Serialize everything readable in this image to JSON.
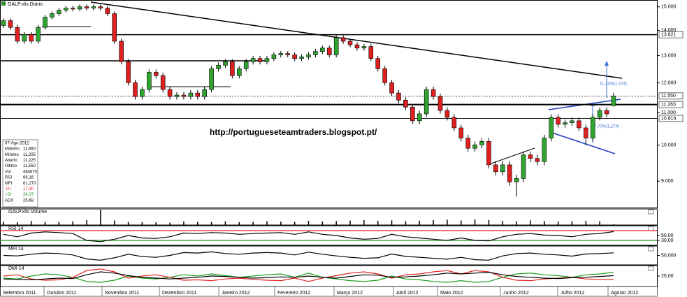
{
  "chart_data": {
    "type": "candlestick",
    "title": "GALP.xlis Diário",
    "watermark": "http://portugueseteamtraders.blogspot.pt/",
    "log": true,
    "ylim": [
      8.33,
      15.3
    ],
    "yticks": [
      {
        "value": 15,
        "label": "15.000"
      },
      {
        "value": 14,
        "label": "14.000"
      },
      {
        "value": 13,
        "label": "13.000"
      },
      {
        "value": 12,
        "label": "12.000"
      },
      {
        "value": 11,
        "label": "11.000"
      },
      {
        "value": 10,
        "label": "10.000"
      },
      {
        "value": 9,
        "label": "9.000"
      }
    ],
    "levels": [
      {
        "value": 13.821,
        "label": "13.821",
        "style": "solid"
      },
      {
        "value": 11.55,
        "label": "11.550",
        "style": "dashed"
      },
      {
        "value": 11.263,
        "label": "11.263",
        "style": "thick"
      },
      {
        "value": 10.816,
        "label": "10.816",
        "style": "thin"
      }
    ],
    "up_color": "#2fa52f",
    "down_color": "#e02020",
    "candles": [
      [
        14.2,
        14.5,
        14.1,
        14.4
      ],
      [
        14.4,
        14.5,
        14.02,
        14.12
      ],
      [
        14.12,
        14.22,
        13.46,
        13.56
      ],
      [
        13.56,
        13.93,
        13.46,
        13.83
      ],
      [
        13.83,
        13.93,
        13.46,
        13.56
      ],
      [
        13.56,
        14.22,
        13.46,
        14.12
      ],
      [
        14.12,
        14.65,
        14.02,
        14.55
      ],
      [
        14.55,
        14.8,
        14.45,
        14.7
      ],
      [
        14.7,
        14.95,
        14.6,
        14.85
      ],
      [
        14.85,
        15.04,
        14.75,
        14.94
      ],
      [
        14.94,
        15.04,
        14.8,
        14.9
      ],
      [
        14.9,
        15.1,
        14.8,
        15.0
      ],
      [
        15.0,
        15.1,
        14.84,
        14.94
      ],
      [
        14.94,
        15.1,
        14.84,
        15.0
      ],
      [
        15.0,
        15.1,
        14.84,
        14.94
      ],
      [
        14.94,
        15.04,
        14.6,
        14.7
      ],
      [
        14.7,
        14.8,
        13.46,
        13.56
      ],
      [
        13.56,
        13.66,
        12.67,
        12.77
      ],
      [
        12.77,
        12.87,
        11.91,
        12.01
      ],
      [
        12.01,
        12.11,
        11.43,
        11.53
      ],
      [
        11.53,
        11.87,
        11.43,
        11.77
      ],
      [
        11.77,
        12.48,
        11.67,
        12.38
      ],
      [
        12.38,
        12.48,
        12.16,
        12.26
      ],
      [
        12.26,
        12.36,
        11.67,
        11.77
      ],
      [
        11.77,
        11.87,
        11.43,
        11.53
      ],
      [
        11.53,
        11.68,
        11.43,
        11.58
      ],
      [
        11.58,
        11.68,
        11.43,
        11.53
      ],
      [
        11.53,
        11.75,
        11.43,
        11.65
      ],
      [
        11.65,
        11.75,
        11.43,
        11.53
      ],
      [
        11.53,
        11.87,
        11.43,
        11.77
      ],
      [
        11.77,
        12.61,
        11.67,
        12.51
      ],
      [
        12.51,
        12.74,
        12.41,
        12.64
      ],
      [
        12.64,
        12.87,
        12.54,
        12.77
      ],
      [
        12.77,
        12.87,
        12.16,
        12.26
      ],
      [
        12.26,
        12.61,
        12.16,
        12.51
      ],
      [
        12.51,
        12.87,
        12.41,
        12.77
      ],
      [
        12.77,
        12.99,
        12.67,
        12.89
      ],
      [
        12.89,
        12.99,
        12.67,
        12.77
      ],
      [
        12.77,
        12.99,
        12.67,
        12.89
      ],
      [
        12.89,
        13.13,
        12.79,
        13.03
      ],
      [
        13.03,
        13.18,
        12.93,
        13.08
      ],
      [
        13.08,
        13.18,
        12.93,
        13.03
      ],
      [
        13.03,
        13.13,
        12.79,
        12.89
      ],
      [
        12.89,
        13.05,
        12.79,
        12.95
      ],
      [
        12.95,
        13.13,
        12.85,
        13.03
      ],
      [
        13.03,
        13.26,
        12.93,
        13.16
      ],
      [
        13.16,
        13.39,
        13.06,
        13.29
      ],
      [
        13.29,
        13.39,
        12.93,
        13.03
      ],
      [
        13.03,
        13.8,
        12.93,
        13.7
      ],
      [
        13.7,
        13.8,
        13.46,
        13.56
      ],
      [
        13.56,
        13.66,
        13.32,
        13.42
      ],
      [
        13.42,
        13.52,
        13.19,
        13.29
      ],
      [
        13.29,
        13.45,
        13.19,
        13.35
      ],
      [
        13.35,
        13.45,
        12.79,
        12.89
      ],
      [
        12.89,
        12.99,
        12.41,
        12.51
      ],
      [
        12.51,
        12.61,
        11.91,
        12.01
      ],
      [
        12.01,
        12.11,
        11.55,
        11.65
      ],
      [
        11.65,
        11.75,
        11.31,
        11.41
      ],
      [
        11.41,
        11.51,
        11.08,
        11.18
      ],
      [
        11.18,
        11.28,
        10.64,
        10.74
      ],
      [
        10.74,
        11.06,
        10.64,
        10.96
      ],
      [
        10.96,
        11.87,
        10.86,
        11.77
      ],
      [
        11.77,
        11.87,
        11.43,
        11.53
      ],
      [
        11.53,
        11.63,
        10.97,
        11.07
      ],
      [
        11.07,
        11.17,
        10.75,
        10.85
      ],
      [
        10.85,
        10.95,
        10.42,
        10.52
      ],
      [
        10.52,
        10.62,
        10.11,
        10.21
      ],
      [
        10.21,
        10.31,
        9.81,
        9.91
      ],
      [
        9.91,
        10.11,
        9.81,
        10.01
      ],
      [
        10.01,
        10.21,
        9.91,
        10.11
      ],
      [
        10.11,
        10.21,
        9.34,
        9.44
      ],
      [
        9.44,
        9.54,
        9.15,
        9.25
      ],
      [
        9.25,
        9.54,
        9.15,
        9.44
      ],
      [
        9.44,
        9.54,
        8.88,
        8.98
      ],
      [
        8.98,
        9.17,
        8.6,
        9.07
      ],
      [
        9.07,
        9.82,
        8.97,
        9.72
      ],
      [
        9.72,
        9.82,
        9.52,
        9.62
      ],
      [
        9.62,
        9.72,
        9.43,
        9.53
      ],
      [
        9.53,
        10.31,
        9.43,
        10.21
      ],
      [
        10.21,
        10.95,
        10.11,
        10.85
      ],
      [
        10.85,
        10.95,
        10.53,
        10.63
      ],
      [
        10.63,
        10.78,
        10.53,
        10.68
      ],
      [
        10.68,
        10.84,
        10.58,
        10.74
      ],
      [
        10.74,
        10.84,
        10.42,
        10.52
      ],
      [
        10.52,
        10.62,
        10.0,
        10.21
      ],
      [
        10.21,
        10.95,
        10.11,
        10.85
      ],
      [
        10.85,
        11.17,
        10.75,
        11.07
      ],
      [
        11.07,
        11.17,
        10.86,
        10.96
      ],
      [
        11.225,
        11.66,
        11.205,
        11.55
      ]
    ],
    "annotations": [
      "11,14%(1,274)",
      "7,70%(1,274)"
    ],
    "info_box": {
      "date": "07-Ago-2012",
      "rows": [
        [
          "Máximo",
          "11,660"
        ],
        [
          "Mínimo",
          "11,205"
        ],
        [
          "Aberto",
          "11,225"
        ],
        [
          "Último",
          "11,550"
        ],
        [
          "Vol",
          "464670"
        ],
        [
          "RSI",
          "66,16"
        ],
        [
          "MFI",
          "61,270"
        ],
        [
          "-DI",
          "17,30"
        ],
        [
          "+DI",
          "34,37"
        ],
        [
          "ADX",
          "25,68"
        ]
      ]
    },
    "panels": [
      {
        "title": "GALP.xlis Volume",
        "ylim": [
          0,
          10
        ],
        "yticks": [],
        "series": [
          {
            "name": "Volume",
            "color": "#000000",
            "kind": "bar",
            "values": [
              2.1,
              1.8,
              2.5,
              1.9,
              2.0,
              2.2,
              3.0,
              9.5,
              2.8,
              2.0,
              1.8,
              1.7,
              1.5,
              2.2,
              2.0,
              1.9,
              2.3,
              1.8,
              2.0,
              2.4,
              2.1,
              2.0,
              2.6,
              2.2,
              2.5,
              2.8,
              3.0,
              2.6,
              2.9,
              2.4,
              2.7,
              3.1,
              3.3,
              2.8,
              3.5,
              3.2,
              2.6,
              2.4,
              2.9,
              2.5,
              2.2,
              2.3,
              2.6,
              2.4,
              0.46
            ]
          }
        ]
      },
      {
        "title": "RSI 14",
        "ylim": [
          10,
          90
        ],
        "yticks": [
          {
            "value": 50,
            "label": "50,00"
          },
          {
            "value": 30,
            "label": "30,00"
          }
        ],
        "bands": [
          70,
          30
        ],
        "series": [
          {
            "name": "RSI",
            "color": "#000000",
            "kind": "line",
            "values": [
              55,
              45,
              60,
              65,
              62,
              58,
              30,
              25,
              35,
              50,
              40,
              38,
              45,
              60,
              58,
              62,
              60,
              55,
              58,
              60,
              62,
              55,
              65,
              55,
              50,
              40,
              35,
              38,
              55,
              45,
              40,
              35,
              30,
              40,
              30,
              28,
              45,
              55,
              58,
              52,
              50,
              45,
              55,
              58,
              66
            ]
          }
        ]
      },
      {
        "title": "MFI 14",
        "ylim": [
          10,
          90
        ],
        "yticks": [
          {
            "value": 50,
            "label": "50,000"
          }
        ],
        "bands": [],
        "series": [
          {
            "name": "MFI",
            "color": "#000000",
            "kind": "line",
            "values": [
              50,
              48,
              55,
              60,
              58,
              52,
              35,
              30,
              40,
              55,
              45,
              42,
              50,
              62,
              60,
              65,
              58,
              55,
              60,
              62,
              60,
              52,
              64,
              55,
              48,
              42,
              38,
              40,
              56,
              46,
              42,
              38,
              34,
              42,
              32,
              30,
              48,
              58,
              60,
              55,
              52,
              47,
              56,
              58,
              61
            ]
          }
        ]
      },
      {
        "title": "DMI 14",
        "ylim": [
          0,
          50
        ],
        "yticks": [
          {
            "value": 25,
            "label": "25,00"
          }
        ],
        "bands": [],
        "series": [
          {
            "name": "+DI",
            "color": "#1a9a1a",
            "kind": "line",
            "values": [
              20,
              18,
              25,
              30,
              28,
              22,
              12,
              10,
              15,
              25,
              20,
              18,
              22,
              28,
              25,
              30,
              26,
              22,
              25,
              28,
              30,
              22,
              32,
              22,
              18,
              14,
              12,
              15,
              25,
              18,
              16,
              12,
              10,
              14,
              10,
              12,
              22,
              30,
              32,
              28,
              26,
              22,
              28,
              30,
              34
            ]
          },
          {
            "name": "-DI",
            "color": "#e02020",
            "kind": "line",
            "values": [
              25,
              28,
              18,
              15,
              16,
              22,
              38,
              42,
              35,
              20,
              25,
              28,
              22,
              15,
              16,
              14,
              18,
              20,
              17,
              15,
              14,
              20,
              12,
              20,
              26,
              32,
              35,
              30,
              20,
              28,
              30,
              35,
              38,
              30,
              38,
              35,
              22,
              15,
              14,
              18,
              20,
              22,
              18,
              17,
              17
            ]
          },
          {
            "name": "ADX",
            "color": "#000000",
            "kind": "line",
            "values": [
              18,
              17,
              16,
              18,
              20,
              19,
              28,
              35,
              32,
              26,
              22,
              20,
              18,
              20,
              22,
              25,
              24,
              22,
              20,
              21,
              23,
              22,
              25,
              22,
              20,
              24,
              28,
              27,
              22,
              23,
              25,
              28,
              32,
              30,
              32,
              34,
              28,
              24,
              22,
              20,
              19,
              21,
              22,
              24,
              26
            ]
          }
        ]
      }
    ],
    "months": [
      "Setembro 2011",
      "Outubro 2011",
      "Novembro 2011",
      "Dezembro 2011",
      "Janeiro 2012",
      "Fevereiro 2012",
      "Março 2012",
      "Abril 2012",
      "Maio 2012",
      "Junho 2012",
      "Julho 2012",
      "Agosto 2012"
    ]
  }
}
